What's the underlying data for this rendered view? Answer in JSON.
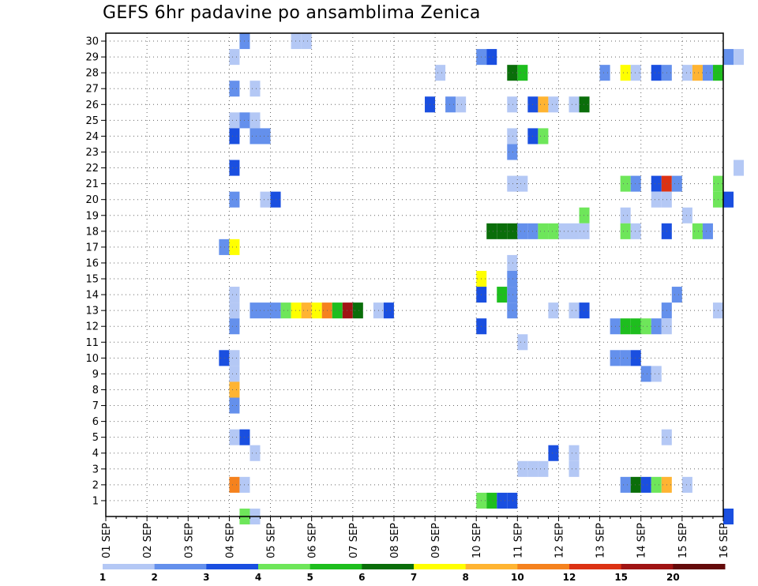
{
  "chart_data": {
    "type": "heatmap",
    "title": "GEFS 6hr padavine po ansamblima Zenica",
    "x_start": "01 SEP",
    "x_end": "16 SEP",
    "x_tick_labels": [
      "01 SEP",
      "02 SEP",
      "03 SEP",
      "04 SEP",
      "05 SEP",
      "06 SEP",
      "07 SEP",
      "08 SEP",
      "09 SEP",
      "10 SEP",
      "11 SEP",
      "12 SEP",
      "13 SEP",
      "14 SEP",
      "15 SEP",
      "16 SEP"
    ],
    "y_tick_labels": [
      1,
      2,
      3,
      4,
      5,
      6,
      7,
      8,
      9,
      10,
      11,
      12,
      13,
      14,
      15,
      16,
      17,
      18,
      19,
      20,
      21,
      22,
      23,
      24,
      25,
      26,
      27,
      28,
      29,
      30
    ],
    "ylim": [
      0,
      30
    ],
    "time_step_hours": 6,
    "grid": true,
    "colorbar": {
      "labels": [
        "1",
        "2",
        "3",
        "4",
        "5",
        "6",
        "7",
        "8",
        "10",
        "12",
        "15",
        "20"
      ],
      "colors": [
        "#b4c8f5",
        "#6490ec",
        "#1a4fe0",
        "#6ee65a",
        "#1ebe1e",
        "#0a6e0a",
        "#ffff00",
        "#ffb432",
        "#f5821e",
        "#dc3214",
        "#a01414",
        "#640a0a"
      ]
    },
    "series": [
      {
        "member": 30,
        "points": [
          [
            4.25,
            1
          ],
          [
            5.5,
            0
          ],
          [
            5.75,
            0
          ]
        ]
      },
      {
        "member": 29,
        "points": [
          [
            4.0,
            0
          ],
          [
            10.0,
            1
          ],
          [
            10.25,
            2
          ],
          [
            16.0,
            1
          ],
          [
            16.25,
            0
          ]
        ]
      },
      {
        "member": 28,
        "points": [
          [
            9.0,
            0
          ],
          [
            10.75,
            5
          ],
          [
            11.0,
            4
          ],
          [
            13.0,
            1
          ],
          [
            13.5,
            6
          ],
          [
            13.75,
            0
          ],
          [
            14.25,
            2
          ],
          [
            14.5,
            1
          ],
          [
            15.0,
            0
          ],
          [
            15.25,
            7
          ],
          [
            15.5,
            1
          ],
          [
            15.75,
            4
          ]
        ]
      },
      {
        "member": 27,
        "points": [
          [
            4.0,
            1
          ],
          [
            4.5,
            0
          ]
        ]
      },
      {
        "member": 26,
        "points": [
          [
            8.75,
            2
          ],
          [
            9.25,
            1
          ],
          [
            9.5,
            0
          ],
          [
            10.75,
            0
          ],
          [
            11.25,
            2
          ],
          [
            11.5,
            7
          ],
          [
            11.75,
            0
          ],
          [
            12.25,
            0
          ],
          [
            12.5,
            5
          ]
        ]
      },
      {
        "member": 25,
        "points": [
          [
            4.0,
            0
          ],
          [
            4.25,
            1
          ],
          [
            4.5,
            0
          ]
        ]
      },
      {
        "member": 24,
        "points": [
          [
            4.0,
            2
          ],
          [
            4.5,
            1
          ],
          [
            4.75,
            1
          ],
          [
            10.75,
            0
          ],
          [
            11.25,
            2
          ],
          [
            11.5,
            3
          ]
        ]
      },
      {
        "member": 23,
        "points": [
          [
            10.75,
            1
          ]
        ]
      },
      {
        "member": 22,
        "points": [
          [
            4.0,
            2
          ],
          [
            16.25,
            0
          ]
        ]
      },
      {
        "member": 21,
        "points": [
          [
            10.75,
            0
          ],
          [
            11.0,
            0
          ],
          [
            13.5,
            3
          ],
          [
            13.75,
            1
          ],
          [
            14.25,
            2
          ],
          [
            14.5,
            9
          ],
          [
            14.75,
            1
          ],
          [
            15.75,
            3
          ]
        ]
      },
      {
        "member": 20,
        "points": [
          [
            4.0,
            1
          ],
          [
            4.75,
            0
          ],
          [
            5.0,
            2
          ],
          [
            14.25,
            0
          ],
          [
            14.5,
            0
          ],
          [
            15.75,
            3
          ],
          [
            16.0,
            2
          ]
        ]
      },
      {
        "member": 19,
        "points": [
          [
            12.5,
            3
          ],
          [
            13.5,
            0
          ],
          [
            15.0,
            0
          ]
        ]
      },
      {
        "member": 18,
        "points": [
          [
            10.25,
            5
          ],
          [
            10.5,
            5
          ],
          [
            10.75,
            5
          ],
          [
            11.0,
            1
          ],
          [
            11.25,
            1
          ],
          [
            11.5,
            3
          ],
          [
            11.75,
            3
          ],
          [
            12.0,
            0
          ],
          [
            12.25,
            0
          ],
          [
            12.5,
            0
          ],
          [
            13.5,
            3
          ],
          [
            13.75,
            0
          ],
          [
            14.5,
            2
          ],
          [
            15.25,
            3
          ],
          [
            15.5,
            1
          ]
        ]
      },
      {
        "member": 17,
        "points": [
          [
            3.75,
            1
          ],
          [
            4.0,
            6
          ]
        ]
      },
      {
        "member": 16,
        "points": [
          [
            10.75,
            0
          ]
        ]
      },
      {
        "member": 15,
        "points": [
          [
            10.0,
            6
          ],
          [
            10.75,
            1
          ]
        ]
      },
      {
        "member": 14,
        "points": [
          [
            4.0,
            0
          ],
          [
            10.0,
            2
          ],
          [
            10.5,
            4
          ],
          [
            10.75,
            1
          ],
          [
            14.75,
            1
          ]
        ]
      },
      {
        "member": 13,
        "points": [
          [
            4.0,
            0
          ],
          [
            4.5,
            1
          ],
          [
            4.75,
            1
          ],
          [
            5.0,
            1
          ],
          [
            5.25,
            3
          ],
          [
            5.5,
            6
          ],
          [
            5.75,
            7
          ],
          [
            6.0,
            6
          ],
          [
            6.25,
            8
          ],
          [
            6.5,
            4
          ],
          [
            6.75,
            10
          ],
          [
            7.0,
            5
          ],
          [
            7.5,
            0
          ],
          [
            7.75,
            2
          ],
          [
            10.75,
            1
          ],
          [
            11.75,
            0
          ],
          [
            12.25,
            0
          ],
          [
            12.5,
            2
          ],
          [
            14.5,
            1
          ],
          [
            15.75,
            0
          ]
        ]
      },
      {
        "member": 12,
        "points": [
          [
            4.0,
            1
          ],
          [
            10.0,
            2
          ],
          [
            13.25,
            1
          ],
          [
            13.5,
            4
          ],
          [
            13.75,
            4
          ],
          [
            14.0,
            3
          ],
          [
            14.25,
            1
          ],
          [
            14.5,
            0
          ]
        ]
      },
      {
        "member": 11,
        "points": [
          [
            11.0,
            0
          ]
        ]
      },
      {
        "member": 10,
        "points": [
          [
            3.75,
            2
          ],
          [
            4.0,
            0
          ],
          [
            13.25,
            1
          ],
          [
            13.5,
            1
          ],
          [
            13.75,
            2
          ]
        ]
      },
      {
        "member": 9,
        "points": [
          [
            4.0,
            0
          ],
          [
            14.0,
            1
          ],
          [
            14.25,
            0
          ]
        ]
      },
      {
        "member": 8,
        "points": [
          [
            4.0,
            7
          ]
        ]
      },
      {
        "member": 7,
        "points": [
          [
            4.0,
            1
          ]
        ]
      },
      {
        "member": 5,
        "points": [
          [
            4.0,
            0
          ],
          [
            4.25,
            2
          ],
          [
            14.5,
            0
          ]
        ]
      },
      {
        "member": 4,
        "points": [
          [
            4.5,
            0
          ],
          [
            11.75,
            2
          ],
          [
            12.25,
            0
          ]
        ]
      },
      {
        "member": 3,
        "points": [
          [
            11.0,
            0
          ],
          [
            11.25,
            0
          ],
          [
            11.5,
            0
          ],
          [
            12.25,
            0
          ]
        ]
      },
      {
        "member": 2,
        "points": [
          [
            4.0,
            8
          ],
          [
            4.25,
            0
          ],
          [
            13.5,
            1
          ],
          [
            13.75,
            5
          ],
          [
            14.0,
            2
          ],
          [
            14.25,
            3
          ],
          [
            14.5,
            7
          ],
          [
            15.0,
            0
          ]
        ]
      },
      {
        "member": 1,
        "points": [
          [
            10.0,
            3
          ],
          [
            10.25,
            4
          ],
          [
            10.5,
            2
          ],
          [
            10.75,
            2
          ]
        ]
      },
      {
        "member": 0,
        "points": [
          [
            4.25,
            3
          ],
          [
            4.5,
            0
          ],
          [
            16.0,
            2
          ]
        ]
      }
    ]
  }
}
